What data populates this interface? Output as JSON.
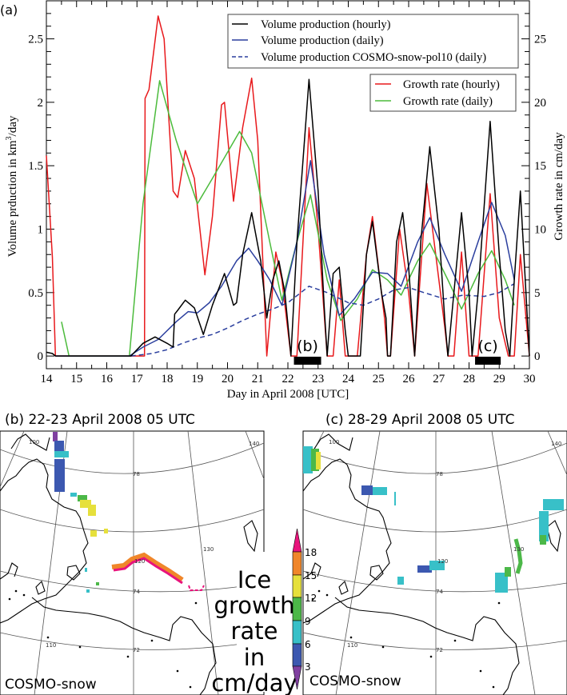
{
  "panel_a": {
    "label": "(a)",
    "chart_data": {
      "type": "line",
      "xlabel": "Day in April 2008 [UTC]",
      "ylabel_left": {
        "pre": "Volume prduction in km",
        "sup": "3",
        "post": "/day"
      },
      "ylabel_right": "Growth rate in cm/day",
      "xlim": [
        14,
        30
      ],
      "ylim_left": [
        -0.1,
        2.8
      ],
      "ylim_right": [
        -1,
        28
      ],
      "xticks": [
        "14",
        "15",
        "16",
        "17",
        "18",
        "19",
        "20",
        "21",
        "22",
        "23",
        "24",
        "25",
        "26",
        "27",
        "28",
        "29",
        "30"
      ],
      "yticks_left": [
        "0",
        "0.5",
        "1",
        "1.5",
        "2",
        "2.5"
      ],
      "yticks_right": [
        "0",
        "5",
        "10",
        "15",
        "20",
        "25"
      ],
      "grid": false,
      "legend_placement": "top-right",
      "series": [
        {
          "name": "Volume production (hourly)",
          "axis": "left",
          "color": "#000000",
          "dash": false,
          "points": [
            [
              14,
              0.03
            ],
            [
              14.2,
              0.02
            ],
            [
              14.3,
              0
            ],
            [
              16.8,
              0
            ],
            [
              17.2,
              0.1
            ],
            [
              17.6,
              0.15
            ],
            [
              18.0,
              0.1
            ],
            [
              18.2,
              0.07
            ],
            [
              18.25,
              0.33
            ],
            [
              18.35,
              0.36
            ],
            [
              18.6,
              0.44
            ],
            [
              18.9,
              0.38
            ],
            [
              19.2,
              0.17
            ],
            [
              19.5,
              0.4
            ],
            [
              19.9,
              0.65
            ],
            [
              20.2,
              0.4
            ],
            [
              20.3,
              0.42
            ],
            [
              20.5,
              0.8
            ],
            [
              20.8,
              1.13
            ],
            [
              21.1,
              0.75
            ],
            [
              21.25,
              0.42
            ],
            [
              21.3,
              0.3
            ],
            [
              21.5,
              0.6
            ],
            [
              21.7,
              0.75
            ],
            [
              21.9,
              0.5
            ],
            [
              22.1,
              0
            ],
            [
              22.3,
              0.9
            ],
            [
              22.7,
              2.18
            ],
            [
              23.0,
              1.3
            ],
            [
              23.2,
              0.4
            ],
            [
              23.3,
              0
            ],
            [
              23.5,
              0.65
            ],
            [
              23.7,
              0.7
            ],
            [
              23.9,
              0.2
            ],
            [
              24.0,
              0
            ],
            [
              24.4,
              0
            ],
            [
              24.6,
              0.8
            ],
            [
              24.8,
              1.06
            ],
            [
              25.1,
              0.5
            ],
            [
              25.25,
              0.3
            ],
            [
              25.3,
              0
            ],
            [
              25.4,
              0
            ],
            [
              25.6,
              0.9
            ],
            [
              25.8,
              1.13
            ],
            [
              26.0,
              0.7
            ],
            [
              26.2,
              0
            ],
            [
              26.4,
              0.9
            ],
            [
              26.7,
              1.65
            ],
            [
              27.0,
              1.0
            ],
            [
              27.2,
              0.27
            ],
            [
              27.3,
              0
            ],
            [
              27.5,
              0.5
            ],
            [
              27.75,
              1.13
            ],
            [
              28.0,
              0.5
            ],
            [
              28.1,
              0
            ],
            [
              28.3,
              0.5
            ],
            [
              28.7,
              1.85
            ],
            [
              29.0,
              0.8
            ],
            [
              29.2,
              0.2
            ],
            [
              29.35,
              0
            ],
            [
              29.5,
              0.6
            ],
            [
              29.7,
              1.3
            ],
            [
              30,
              0
            ]
          ]
        },
        {
          "name": "Volume production (daily)",
          "axis": "left",
          "color": "#2b3f9e",
          "dash": false,
          "points": [
            [
              14.3,
              0
            ],
            [
              16.75,
              0
            ],
            [
              17.2,
              0.07
            ],
            [
              17.7,
              0.13
            ],
            [
              18.3,
              0.27
            ],
            [
              18.7,
              0.35
            ],
            [
              19.0,
              0.34
            ],
            [
              19.4,
              0.42
            ],
            [
              19.8,
              0.55
            ],
            [
              20.3,
              0.75
            ],
            [
              20.7,
              0.85
            ],
            [
              21.0,
              0.75
            ],
            [
              21.4,
              0.6
            ],
            [
              21.8,
              0.4
            ],
            [
              22.3,
              0.9
            ],
            [
              22.75,
              1.54
            ],
            [
              23.2,
              0.8
            ],
            [
              23.7,
              0.32
            ],
            [
              24.2,
              0.45
            ],
            [
              24.8,
              0.66
            ],
            [
              25.3,
              0.65
            ],
            [
              25.75,
              0.55
            ],
            [
              26.3,
              0.9
            ],
            [
              26.7,
              1.09
            ],
            [
              27.2,
              0.8
            ],
            [
              27.75,
              0.51
            ],
            [
              28.3,
              0.9
            ],
            [
              28.75,
              1.21
            ],
            [
              29.2,
              0.95
            ],
            [
              29.5,
              0.6
            ]
          ]
        },
        {
          "name": "Volume production COSMO-snow-pol10 (daily)",
          "axis": "left",
          "color": "#2b3f9e",
          "dash": true,
          "points": [
            [
              16.8,
              0
            ],
            [
              17.5,
              0.02
            ],
            [
              18.0,
              0.05
            ],
            [
              18.5,
              0.1
            ],
            [
              19.0,
              0.14
            ],
            [
              19.5,
              0.17
            ],
            [
              20.0,
              0.22
            ],
            [
              20.5,
              0.28
            ],
            [
              21.0,
              0.33
            ],
            [
              21.5,
              0.37
            ],
            [
              22.0,
              0.42
            ],
            [
              22.7,
              0.55
            ],
            [
              23.3,
              0.5
            ],
            [
              24.0,
              0.42
            ],
            [
              24.5,
              0.4
            ],
            [
              25.0,
              0.45
            ],
            [
              25.5,
              0.52
            ],
            [
              26.0,
              0.54
            ],
            [
              26.5,
              0.5
            ],
            [
              27.2,
              0.45
            ],
            [
              27.8,
              0.48
            ],
            [
              28.5,
              0.47
            ],
            [
              29.0,
              0.5
            ],
            [
              29.5,
              0.57
            ]
          ]
        },
        {
          "name": "Growth rate (hourly)",
          "axis": "right",
          "color": "#e8191c",
          "dash": false,
          "points": [
            [
              14,
              15.8
            ],
            [
              14.2,
              7.8
            ],
            [
              14.3,
              0
            ],
            [
              17.25,
              0
            ],
            [
              17.27,
              20.3
            ],
            [
              17.4,
              21
            ],
            [
              17.7,
              26.8
            ],
            [
              17.9,
              25
            ],
            [
              18.2,
              13
            ],
            [
              18.35,
              12.5
            ],
            [
              18.6,
              16.2
            ],
            [
              18.9,
              14
            ],
            [
              19.25,
              6.4
            ],
            [
              19.5,
              11
            ],
            [
              19.8,
              19.8
            ],
            [
              19.9,
              20
            ],
            [
              20.2,
              12.2
            ],
            [
              20.5,
              18
            ],
            [
              20.8,
              21.9
            ],
            [
              21.0,
              17
            ],
            [
              21.3,
              0
            ],
            [
              21.6,
              8.2
            ],
            [
              21.8,
              6
            ],
            [
              22.1,
              0
            ],
            [
              22.3,
              0
            ],
            [
              22.7,
              18
            ],
            [
              23.0,
              10
            ],
            [
              23.3,
              0
            ],
            [
              23.5,
              0
            ],
            [
              23.7,
              6
            ],
            [
              23.9,
              0
            ],
            [
              24.3,
              0
            ],
            [
              24.6,
              8
            ],
            [
              24.8,
              11
            ],
            [
              25.2,
              3
            ],
            [
              25.3,
              0
            ],
            [
              25.4,
              0
            ],
            [
              25.7,
              10
            ],
            [
              26.0,
              5
            ],
            [
              26.2,
              0
            ],
            [
              26.6,
              13.6
            ],
            [
              27.0,
              6
            ],
            [
              27.2,
              2.2
            ],
            [
              27.3,
              0
            ],
            [
              27.5,
              0
            ],
            [
              27.75,
              8.2
            ],
            [
              28.0,
              0
            ],
            [
              28.3,
              0
            ],
            [
              28.7,
              12.8
            ],
            [
              29.0,
              3
            ],
            [
              29.2,
              1
            ],
            [
              29.3,
              0
            ],
            [
              29.5,
              0
            ],
            [
              29.7,
              8
            ],
            [
              30,
              0
            ]
          ]
        },
        {
          "name": "Growth rate (daily)",
          "axis": "right",
          "color": "#4cbb3c",
          "dash": false,
          "points": [
            [
              14.5,
              2.7
            ],
            [
              14.75,
              0
            ],
            [
              16.75,
              0
            ],
            [
              17.2,
              12
            ],
            [
              17.75,
              21.7
            ],
            [
              18.3,
              17
            ],
            [
              19.0,
              12
            ],
            [
              19.5,
              14
            ],
            [
              20.4,
              17.7
            ],
            [
              20.8,
              16
            ],
            [
              21.4,
              9
            ],
            [
              21.8,
              4.4
            ],
            [
              22.3,
              9
            ],
            [
              22.75,
              12.7
            ],
            [
              23.3,
              6
            ],
            [
              23.75,
              2.8
            ],
            [
              24.3,
              4.5
            ],
            [
              24.8,
              6.8
            ],
            [
              25.3,
              6
            ],
            [
              25.75,
              4.8
            ],
            [
              26.3,
              7.5
            ],
            [
              26.7,
              8.9
            ],
            [
              27.3,
              6
            ],
            [
              27.75,
              3.7
            ],
            [
              28.3,
              6.5
            ],
            [
              28.75,
              8.3
            ],
            [
              29.2,
              6
            ],
            [
              29.5,
              4
            ]
          ]
        }
      ],
      "annotations": [
        {
          "text": "(b)",
          "x_range": [
            22.2,
            23.1
          ]
        },
        {
          "text": "(c)",
          "x_range": [
            28.2,
            29.05
          ]
        }
      ]
    }
  },
  "panel_b": {
    "title": "(b) 22-23 April 2008 05 UTC",
    "model": "COSMO-snow",
    "lon_labels": [
      "100",
      "110",
      "120",
      "130",
      "140"
    ],
    "lat_labels": [
      "78",
      "74",
      "72"
    ]
  },
  "panel_c": {
    "title": "(c) 28-29 April 2008 05 UTC",
    "model": "COSMO-snow",
    "lon_labels": [
      "100",
      "110",
      "120",
      "130",
      "140"
    ],
    "lat_labels": [
      "78",
      "74",
      "72"
    ]
  },
  "colorbar": {
    "label_lines": [
      "Ice",
      "growth",
      "rate",
      "in",
      "cm/day"
    ],
    "ticks": [
      "18",
      "15",
      "12",
      "9",
      "6",
      "3"
    ],
    "colors": {
      "above18": "#e8147c",
      "15-18": "#f0862a",
      "12-15": "#e6e03c",
      "9-12": "#4cb848",
      "6-9": "#38c0c8",
      "3-6": "#3c58b0",
      "below3": "#8040a0"
    }
  }
}
